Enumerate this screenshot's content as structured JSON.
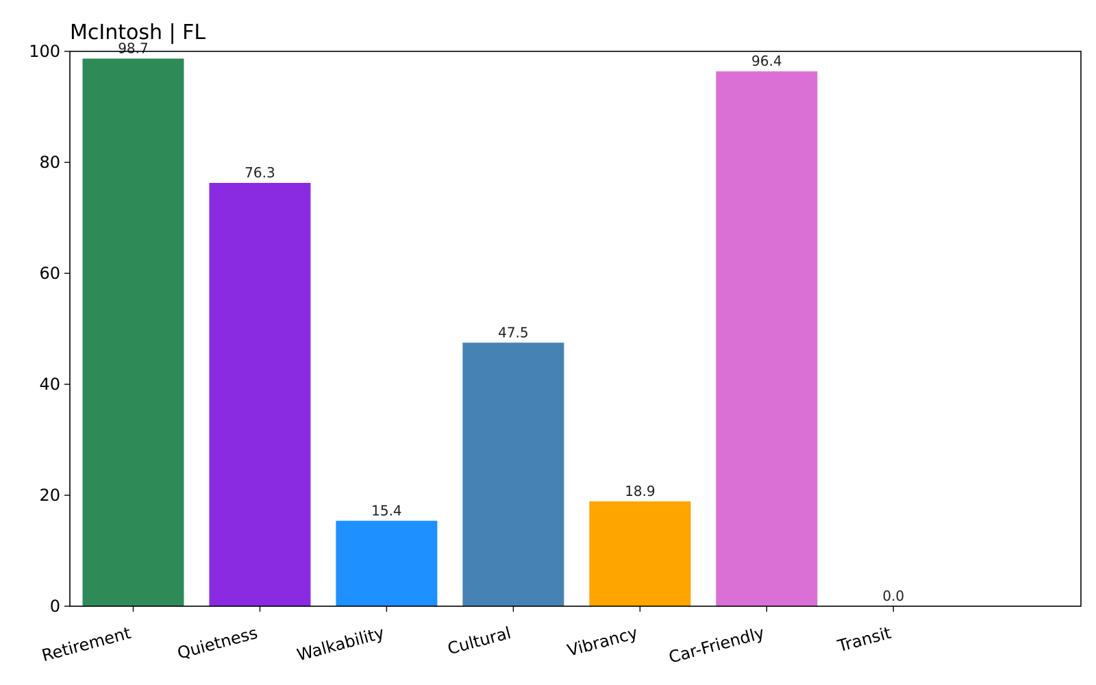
{
  "chart_data": {
    "type": "bar",
    "title": "McIntosh | FL",
    "xlabel": "",
    "ylabel": "",
    "categories": [
      "Retirement",
      "Quietness",
      "Walkability",
      "Cultural",
      "Vibrancy",
      "Car-Friendly",
      "Transit"
    ],
    "values": [
      98.7,
      76.3,
      15.4,
      47.5,
      18.9,
      96.4,
      0.0
    ],
    "value_labels": [
      "98.7",
      "76.3",
      "15.4",
      "47.5",
      "18.9",
      "96.4",
      "0.0"
    ],
    "colors": [
      "#2e8b57",
      "#8a2be2",
      "#1e90ff",
      "#4682b4",
      "#ffa500",
      "#da70d6",
      "#6b8e23"
    ],
    "ylim": [
      0,
      100
    ],
    "yticks": [
      0,
      20,
      40,
      60,
      80,
      100
    ],
    "ytick_labels": [
      "0",
      "20",
      "40",
      "60",
      "80",
      "100"
    ],
    "grid": false,
    "legend": "none"
  }
}
